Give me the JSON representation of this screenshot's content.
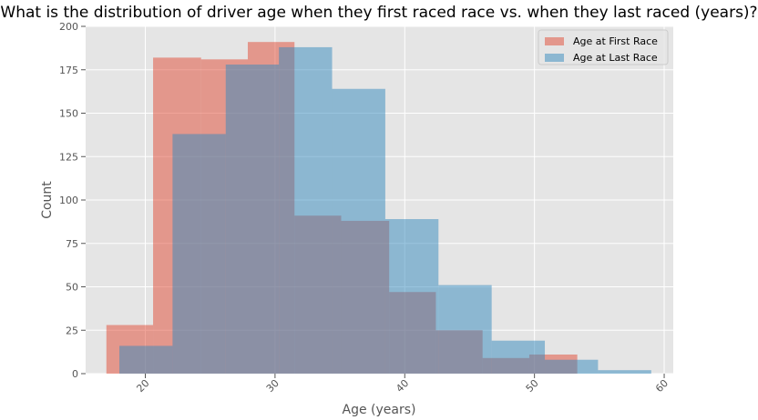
{
  "chart_data": {
    "type": "histogram",
    "title": "What is the distribution of driver age when they first raced race vs. when they last raced (years)?",
    "xlabel": "Age (years)",
    "ylabel": "Count",
    "xlim": [
      15.4,
      60.7
    ],
    "ylim": [
      0,
      200
    ],
    "x_ticks": [
      20,
      30,
      40,
      50,
      60
    ],
    "x_tick_labels": [
      "20",
      "30",
      "40",
      "50",
      "60"
    ],
    "y_ticks": [
      0,
      25,
      50,
      75,
      100,
      125,
      150,
      175,
      200
    ],
    "y_tick_labels": [
      "0",
      "25",
      "50",
      "75",
      "100",
      "125",
      "150",
      "175",
      "200"
    ],
    "grid": true,
    "legend_position": "top-right",
    "series": [
      {
        "name": "Age at First Race",
        "color": "#E24A33",
        "opacity": 0.5,
        "bins": [
          17.0,
          20.6,
          24.3,
          27.9,
          31.5,
          35.1,
          38.8,
          42.4,
          46.0,
          49.6,
          53.3
        ],
        "counts": [
          28,
          182,
          181,
          191,
          91,
          88,
          47,
          25,
          9,
          11
        ]
      },
      {
        "name": "Age at Last Race",
        "color": "#348ABD",
        "opacity": 0.5,
        "bins": [
          18.0,
          22.1,
          26.2,
          30.3,
          34.4,
          38.5,
          42.6,
          46.7,
          50.8,
          54.9,
          59.0
        ],
        "counts": [
          16,
          138,
          178,
          188,
          164,
          89,
          51,
          19,
          8,
          2
        ]
      }
    ]
  }
}
